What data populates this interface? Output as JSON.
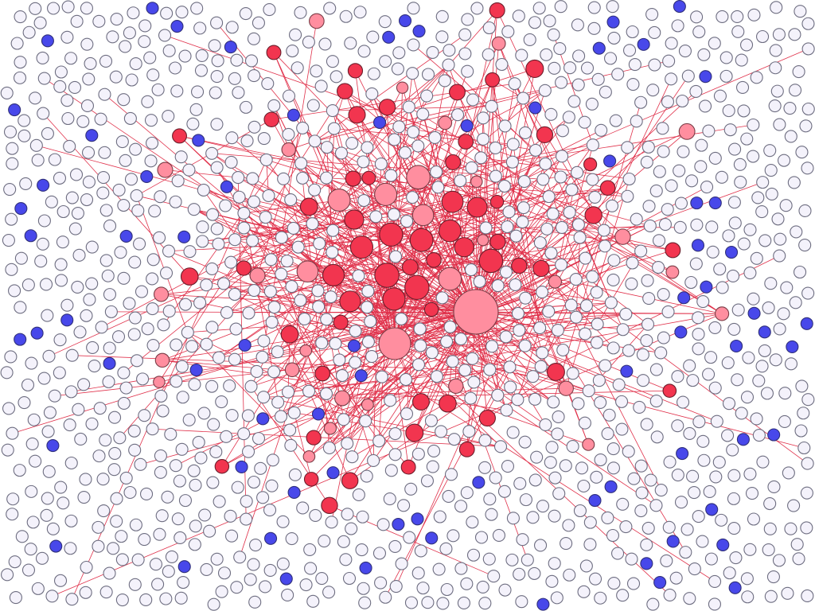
{
  "graph": {
    "type": "force-directed-network",
    "colors": {
      "background": "#ffffff",
      "edge": "#e0304a",
      "node_inactive": "#f4f2fb",
      "node_inactive_stroke": "#6d6d80",
      "node_blue": "#4848ea",
      "node_blue_stroke": "#30307a",
      "node_red": "#f2354f",
      "node_red_stroke": "#6b1f2c",
      "node_pink": "#ff8e9f",
      "node_pink_stroke": "#7a3c46"
    },
    "node_categories": [
      "inactive",
      "blue",
      "red",
      "pink"
    ],
    "hub": {
      "category": "pink",
      "degree": 60
    },
    "secondary_hub": {
      "category": "pink",
      "degree": 32
    },
    "background_node_count": 1250,
    "blue_node_count": 75,
    "active_red_count": 60,
    "active_pink_count": 32,
    "active_white_count": 150
  }
}
